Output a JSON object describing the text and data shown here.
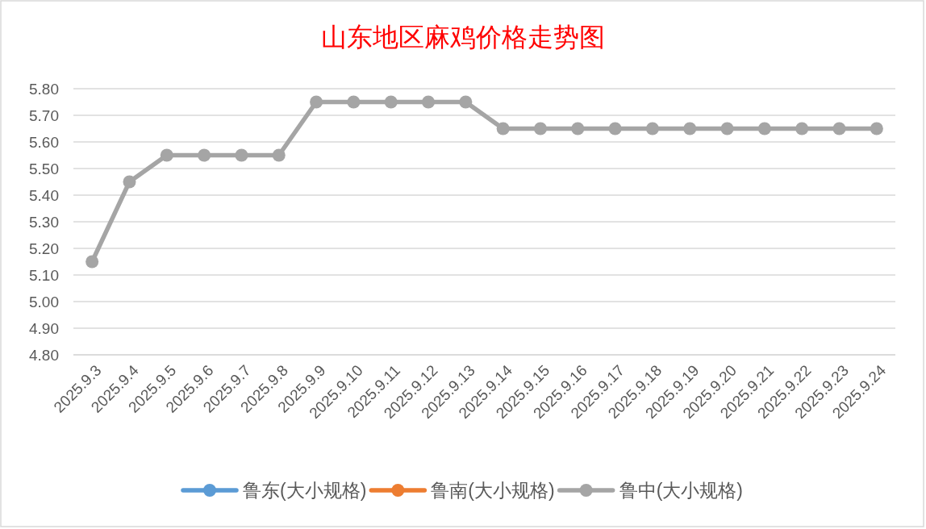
{
  "chart_data": {
    "type": "line",
    "title": "山东地区麻鸡价格走势图",
    "categories": [
      "2025.9.3",
      "2025.9.4",
      "2025.9.5",
      "2025.9.6",
      "2025.9.7",
      "2025.9.8",
      "2025.9.9",
      "2025.9.10",
      "2025.9.11",
      "2025.9.12",
      "2025.9.13",
      "2025.9.14",
      "2025.9.15",
      "2025.9.16",
      "2025.9.17",
      "2025.9.18",
      "2025.9.19",
      "2025.9.20",
      "2025.9.21",
      "2025.9.22",
      "2025.9.23",
      "2025.9.24"
    ],
    "series": [
      {
        "name": "鲁东(大小规格)",
        "color": "#5b9bd5",
        "values": [
          null,
          null,
          null,
          null,
          null,
          null,
          null,
          null,
          null,
          null,
          null,
          null,
          null,
          null,
          null,
          null,
          null,
          null,
          null,
          null,
          null,
          null
        ]
      },
      {
        "name": "鲁南(大小规格)",
        "color": "#ed7d31",
        "values": [
          null,
          null,
          null,
          null,
          null,
          null,
          null,
          null,
          null,
          null,
          null,
          null,
          null,
          null,
          null,
          null,
          null,
          null,
          null,
          null,
          null,
          null
        ]
      },
      {
        "name": "鲁中(大小规格)",
        "color": "#a5a5a5",
        "values": [
          5.15,
          5.45,
          5.55,
          5.55,
          5.55,
          5.55,
          5.75,
          5.75,
          5.75,
          5.75,
          5.75,
          5.65,
          5.65,
          5.65,
          5.65,
          5.65,
          5.65,
          5.65,
          5.65,
          5.65,
          5.65,
          5.65
        ]
      }
    ],
    "ylim": [
      4.8,
      5.8
    ],
    "yticks": [
      {
        "value": 4.8,
        "label": "4.80"
      },
      {
        "value": 4.9,
        "label": "4.90"
      },
      {
        "value": 5.0,
        "label": "5.00"
      },
      {
        "value": 5.1,
        "label": "5.10"
      },
      {
        "value": 5.2,
        "label": "5.20"
      },
      {
        "value": 5.3,
        "label": "5.30"
      },
      {
        "value": 5.4,
        "label": "5.40"
      },
      {
        "value": 5.5,
        "label": "5.50"
      },
      {
        "value": 5.6,
        "label": "5.60"
      },
      {
        "value": 5.7,
        "label": "5.70"
      },
      {
        "value": 5.8,
        "label": "5.80"
      }
    ],
    "grid": "y",
    "legend": "bottom",
    "marker": "circle",
    "line_style": "solid"
  }
}
